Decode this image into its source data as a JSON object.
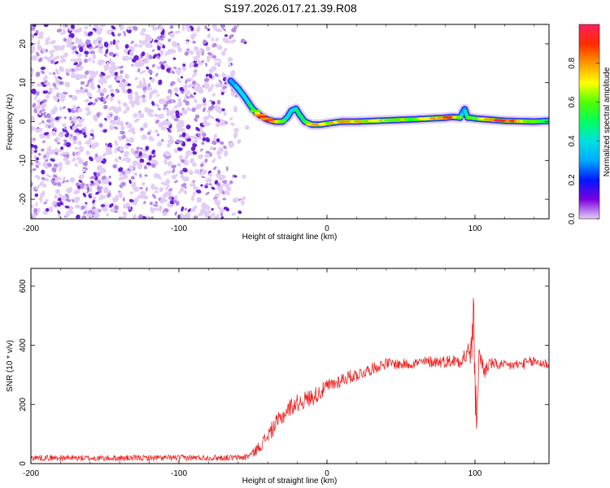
{
  "title": "S197.2026.017.21.39.R08",
  "colors": {
    "speckle_light": "#e2cdf6",
    "speckle_mid": "#b68ae8",
    "speckle_dark": "#6a1fd8",
    "snr_line": "#ee2222",
    "axis": "#000000"
  },
  "chart_data": [
    {
      "type": "heatmap",
      "name": "spectrogram",
      "xlabel": "Height of straight line (km)",
      "ylabel": "Frequency (Hz)",
      "xlim": [
        -200,
        150
      ],
      "ylim": [
        -25,
        25
      ],
      "x_ticks": [
        -200,
        -100,
        0,
        100
      ],
      "x_tick_labels": [
        "-200",
        "-100",
        "0",
        "100"
      ],
      "y_ticks": [
        -20,
        -10,
        0,
        10,
        20
      ],
      "y_tick_labels": [
        "-20",
        "-10",
        "0",
        "10",
        "20"
      ],
      "noise_region": {
        "x_min": -200,
        "x_max": -57
      },
      "signal_track": {
        "x": [
          -65,
          -60,
          -55,
          -50,
          -45,
          -40,
          -35,
          -30,
          -27,
          -24,
          -21,
          -18,
          -15,
          -10,
          -5,
          0,
          10,
          20,
          40,
          60,
          80,
          85,
          90,
          92,
          93,
          95,
          97,
          100,
          110,
          120,
          140,
          150
        ],
        "freq": [
          10.5,
          8.5,
          6,
          3.2,
          1.5,
          0.5,
          0,
          0,
          1,
          2.8,
          3.3,
          1.5,
          0,
          -0.8,
          -0.8,
          -0.5,
          0,
          0,
          0.3,
          0.6,
          1.0,
          1.2,
          1.0,
          2.5,
          3.2,
          1.0,
          1.0,
          0.8,
          0.5,
          0.2,
          0.0,
          0.2
        ],
        "amplitude": [
          0.25,
          0.3,
          0.35,
          0.5,
          0.8,
          0.9,
          0.85,
          0.7,
          0.45,
          0.3,
          0.4,
          0.5,
          0.55,
          0.65,
          0.7,
          0.6,
          0.8,
          0.75,
          0.65,
          0.55,
          0.85,
          0.95,
          0.6,
          0.3,
          0.2,
          0.5,
          0.6,
          0.5,
          0.75,
          0.95,
          0.6,
          0.5
        ]
      },
      "colorbar": {
        "label": "Normalized spectral amplitude",
        "range": [
          0,
          1
        ],
        "ticks": [
          0.0,
          0.2,
          0.4,
          0.6,
          0.8
        ],
        "tick_labels": [
          "0.0",
          "0.2",
          "0.4",
          "0.6",
          "0.8"
        ],
        "colors": [
          "#e5cdf7",
          "#7b00e0",
          "#0018ff",
          "#00aaff",
          "#00e0e0",
          "#00ff60",
          "#50ff00",
          "#ffff00",
          "#ff9900",
          "#ff2a00",
          "#ff2060"
        ]
      }
    },
    {
      "type": "line",
      "name": "snr",
      "xlabel": "Height of straight line (km)",
      "ylabel": "SNR (10 * v/v)",
      "xlim": [
        -200,
        150
      ],
      "ylim": [
        0,
        660
      ],
      "x_ticks": [
        -200,
        -100,
        0,
        100
      ],
      "x_tick_labels": [
        "-200",
        "-100",
        "0",
        "100"
      ],
      "y_ticks": [
        0,
        200,
        400,
        600
      ],
      "y_tick_labels": [
        "0",
        "200",
        "400",
        "600"
      ],
      "series": [
        {
          "name": "SNR",
          "x": [
            -200,
            -150,
            -100,
            -60,
            -55,
            -50,
            -45,
            -40,
            -35,
            -30,
            -25,
            -20,
            -15,
            -10,
            -5,
            0,
            5,
            10,
            20,
            30,
            40,
            50,
            60,
            70,
            80,
            90,
            95,
            98,
            99,
            100,
            101,
            103,
            106,
            110,
            120,
            130,
            140,
            150
          ],
          "values": [
            20,
            18,
            20,
            20,
            22,
            35,
            60,
            95,
            130,
            160,
            190,
            205,
            215,
            225,
            240,
            260,
            270,
            285,
            300,
            320,
            340,
            335,
            340,
            345,
            345,
            350,
            370,
            390,
            520,
            300,
            140,
            380,
            310,
            340,
            330,
            335,
            345,
            335
          ],
          "noise_amplitude": [
            10,
            10,
            10,
            10,
            12,
            15,
            20,
            25,
            30,
            30,
            30,
            30,
            30,
            30,
            28,
            25,
            25,
            25,
            22,
            20,
            18,
            18,
            18,
            20,
            20,
            25,
            40,
            60,
            60,
            140,
            60,
            40,
            30,
            20,
            18,
            18,
            20,
            18
          ]
        }
      ]
    }
  ]
}
